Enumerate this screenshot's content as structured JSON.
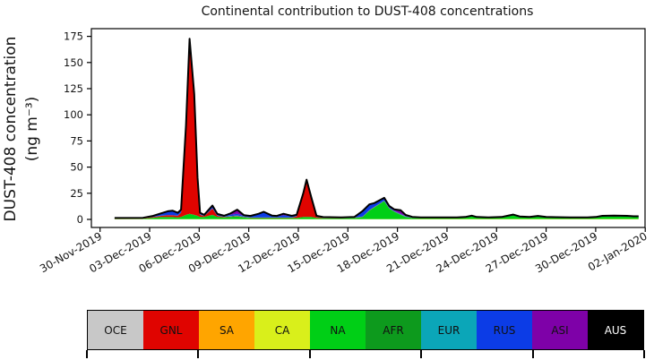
{
  "figure": {
    "title": "Continental contribution to DUST-408 concentrations",
    "ylabel_line1": "DUST-408 concentration",
    "ylabel_line2": "(ng m⁻³)"
  },
  "chart_data": {
    "type": "area",
    "stacked": true,
    "title": "Continental contribution to DUST-408 concentrations",
    "xlabel": "",
    "ylabel": "DUST-408 concentration (ng m⁻³)",
    "grid": false,
    "x_unit": "days since 30-Nov-2019",
    "xlim": [
      -0.55,
      33.0
    ],
    "ylim": [
      -7.7,
      182.4
    ],
    "y_ticks": [
      0,
      25,
      50,
      75,
      100,
      125,
      150,
      175
    ],
    "x_tick_days": [
      0,
      3,
      6,
      9,
      12,
      15,
      18,
      21,
      24,
      27,
      30,
      33
    ],
    "x_tick_labels": [
      "30-Nov-2019",
      "03-Dec-2019",
      "06-Dec-2019",
      "09-Dec-2019",
      "12-Dec-2019",
      "15-Dec-2019",
      "18-Dec-2019",
      "21-Dec-2019",
      "24-Dec-2019",
      "27-Dec-2019",
      "30-Dec-2019",
      "02-Jan-2020"
    ],
    "outline_color": "#000000",
    "x": [
      0.88,
      2.6,
      3.2,
      3.7,
      4.1,
      4.4,
      4.7,
      4.9,
      5.2,
      5.42,
      5.7,
      5.9,
      6.05,
      6.3,
      6.8,
      7.1,
      7.5,
      7.9,
      8.3,
      8.7,
      9.1,
      9.6,
      9.9,
      10.4,
      10.7,
      11.1,
      11.6,
      11.9,
      12.3,
      12.5,
      12.8,
      13.1,
      13.5,
      14.6,
      15.4,
      15.9,
      16.3,
      16.6,
      17.2,
      17.5,
      17.8,
      18.2,
      18.5,
      18.9,
      19.4,
      20.5,
      21.6,
      22.1,
      22.5,
      22.8,
      23.5,
      24.3,
      25.0,
      25.4,
      26.0,
      26.5,
      27.0,
      27.6,
      28.6,
      29.5,
      30.0,
      30.4,
      31.1,
      31.9,
      32.3,
      32.6
    ],
    "series": [
      {
        "name": "OCE",
        "color": "#c8c8c8",
        "values": [
          0.05,
          0.05,
          0.05,
          0.05,
          0.05,
          0.05,
          0.05,
          0.05,
          0.05,
          0.05,
          0.05,
          0.05,
          0.05,
          0.05,
          0.05,
          0.05,
          0.05,
          0.05,
          0.05,
          0.05,
          0.05,
          0.05,
          0.05,
          0.05,
          0.05,
          0.05,
          0.05,
          0.05,
          0.05,
          0.05,
          0.05,
          0.05,
          0.05,
          0.05,
          0.05,
          0.05,
          0.05,
          0.05,
          0.05,
          0.05,
          0.05,
          0.05,
          0.05,
          0.05,
          0.05,
          0.05,
          0.05,
          0.05,
          0.05,
          0.05,
          0.05,
          0.05,
          0.05,
          0.05,
          0.05,
          0.05,
          0.05,
          0.05,
          0.05,
          0.05,
          0.05,
          0.05,
          0.05,
          0.05,
          0.05,
          0.05
        ]
      },
      {
        "name": "SA",
        "color": "#ffa500",
        "values": [
          0.05,
          0.05,
          0.05,
          0.05,
          0.05,
          0.05,
          0.05,
          0.05,
          0.05,
          0.05,
          0.05,
          0.05,
          0.05,
          0.05,
          0.05,
          0.05,
          0.05,
          0.05,
          0.05,
          0.05,
          0.05,
          0.05,
          0.05,
          0.05,
          0.05,
          0.05,
          0.05,
          0.05,
          0.05,
          0.05,
          0.05,
          0.05,
          0.05,
          0.05,
          0.05,
          0.05,
          0.05,
          0.05,
          0.05,
          0.05,
          0.05,
          0.05,
          0.05,
          0.05,
          0.05,
          0.05,
          0.05,
          0.05,
          0.05,
          0.05,
          0.05,
          0.05,
          0.05,
          0.05,
          0.05,
          0.05,
          0.05,
          0.05,
          0.05,
          0.05,
          0.05,
          0.05,
          0.05,
          0.05,
          0.05,
          0.05
        ]
      },
      {
        "name": "CA",
        "color": "#d9ef1b",
        "values": [
          0.2,
          0.2,
          0.2,
          0.2,
          0.2,
          0.2,
          0.2,
          0.2,
          0.2,
          0.2,
          0.2,
          0.2,
          0.2,
          0.2,
          0.2,
          0.2,
          0.2,
          0.2,
          0.2,
          0.2,
          0.2,
          0.2,
          0.2,
          0.2,
          0.2,
          0.2,
          0.2,
          0.2,
          0.2,
          0.2,
          0.2,
          0.2,
          0.2,
          0.2,
          0.2,
          0.2,
          0.2,
          0.2,
          0.2,
          0.2,
          0.2,
          0.2,
          0.2,
          0.2,
          0.3,
          0.3,
          0.3,
          0.3,
          0.3,
          0.3,
          0.3,
          0.3,
          0.3,
          0.3,
          0.3,
          0.3,
          0.3,
          0.3,
          0.3,
          0.3,
          0.3,
          0.3,
          0.3,
          0.3,
          0.3,
          0.3
        ]
      },
      {
        "name": "NA",
        "color": "#00cf16",
        "values": [
          0.3,
          0.4,
          1.2,
          2,
          2,
          2,
          1.5,
          2,
          4,
          5,
          4,
          3,
          2,
          2,
          4,
          2,
          1.5,
          2,
          2.5,
          1.5,
          1,
          1,
          1,
          1,
          1,
          1,
          1,
          1,
          2,
          2,
          2,
          1,
          0.8,
          0.8,
          1,
          2,
          8,
          11,
          17,
          10,
          7,
          4,
          2,
          1,
          0.8,
          0.8,
          0.8,
          1.2,
          2.5,
          1.2,
          0.8,
          1.2,
          3.5,
          1.7,
          1.2,
          2.2,
          1.2,
          1,
          0.8,
          0.8,
          1.2,
          2.2,
          2.4,
          2.2,
          1.8,
          1.8
        ]
      },
      {
        "name": "AFR",
        "color": "#0d9a1d",
        "values": [
          0.1,
          0.1,
          0.1,
          0.1,
          0.1,
          0.1,
          0.1,
          0.1,
          0.1,
          0.1,
          0.1,
          0.1,
          0.1,
          0.1,
          0.1,
          0.1,
          0.1,
          0.1,
          0.1,
          0.1,
          0.1,
          0.1,
          0.1,
          0.1,
          0.1,
          0.1,
          0.1,
          0.1,
          0.1,
          0.1,
          0.1,
          0.1,
          0.1,
          0.1,
          0.1,
          0.1,
          0.3,
          0.3,
          0.3,
          0.3,
          0.3,
          0.3,
          0.1,
          0.1,
          0.1,
          0.1,
          0.1,
          0.1,
          0.1,
          0.1,
          0.1,
          0.1,
          0.1,
          0.1,
          0.1,
          0.1,
          0.1,
          0.1,
          0.1,
          0.1,
          0.1,
          0.1,
          0.1,
          0.1,
          0.1,
          0.1
        ]
      },
      {
        "name": "GNL",
        "color": "#e00400",
        "values": [
          0.3,
          0.3,
          0.6,
          1,
          1.5,
          1.5,
          1.5,
          4,
          82,
          165,
          113,
          34,
          2,
          0.8,
          6,
          1,
          0.4,
          0.4,
          0.4,
          0.3,
          0.3,
          0.3,
          0.3,
          0.3,
          0.3,
          0.3,
          0.3,
          1.5,
          21,
          34,
          16.5,
          1,
          0.3,
          0.2,
          0.2,
          0.2,
          0.2,
          0.2,
          0.2,
          0.2,
          0.1,
          0.1,
          0.1,
          0.1,
          0.1,
          0.1,
          0.1,
          0.1,
          0.1,
          0.1,
          0.1,
          0.1,
          0.1,
          0.1,
          0.1,
          0.1,
          0.1,
          0.1,
          0.1,
          0.1,
          0.1,
          0.1,
          0.1,
          0.1,
          0.1,
          0.1
        ]
      },
      {
        "name": "EUR",
        "color": "#0ba6b8",
        "values": [
          0.2,
          0.2,
          0.2,
          0.2,
          0.2,
          0.2,
          0.2,
          0.2,
          0.2,
          0.2,
          0.2,
          0.2,
          0.2,
          0.2,
          0.2,
          0.2,
          0.2,
          0.5,
          0.5,
          0.5,
          0.2,
          0.2,
          0.2,
          0.2,
          0.2,
          0.2,
          0.2,
          0.2,
          0.5,
          0.5,
          0.5,
          0.2,
          0.2,
          0.2,
          0.2,
          0.2,
          0.2,
          0.2,
          0.2,
          0.2,
          0.2,
          0.2,
          0.2,
          0.2,
          0.2,
          0.2,
          0.2,
          0.2,
          0.2,
          0.2,
          0.2,
          0.2,
          0.2,
          0.2,
          0.2,
          0.2,
          0.2,
          0.2,
          0.2,
          0.2,
          0.2,
          0.2,
          0.2,
          0.2,
          0.2,
          0.2
        ]
      },
      {
        "name": "RUS",
        "color": "#0c3ce6",
        "values": [
          0.1,
          0.2,
          0.8,
          2,
          3.5,
          4,
          2.5,
          2.5,
          3,
          2,
          2,
          2,
          1.2,
          0.6,
          1.5,
          1,
          0.5,
          1.2,
          1.5,
          0.6,
          1,
          3,
          5,
          1.5,
          1,
          2,
          1,
          1,
          1,
          1,
          0.8,
          0.5,
          0.3,
          0.3,
          0.5,
          5,
          5,
          3,
          2,
          1,
          0.6,
          0.4,
          0.4,
          0.3,
          0.2,
          0.2,
          0.2,
          0.2,
          0.2,
          0.2,
          0.2,
          0.2,
          0.2,
          0.2,
          0.2,
          0.2,
          0.2,
          0.2,
          0.2,
          0.2,
          0.2,
          0.3,
          0.3,
          0.3,
          0.3,
          0.3
        ]
      },
      {
        "name": "ASI",
        "color": "#7e01a8",
        "values": [
          0.05,
          0.05,
          0.1,
          0.2,
          0.2,
          0.2,
          0.2,
          0.2,
          0.2,
          0.2,
          0.3,
          0.5,
          0.5,
          0.4,
          1.2,
          0.6,
          0.5,
          1.2,
          4,
          0.8,
          0.4,
          0.5,
          0.4,
          0.3,
          0.4,
          1.5,
          0.5,
          0.3,
          0.1,
          0.1,
          0.3,
          0.3,
          0.2,
          0.1,
          0.1,
          0.3,
          0.4,
          0.6,
          0.6,
          0.8,
          1.2,
          3.4,
          1.2,
          0.4,
          0.2,
          0.1,
          0.1,
          0.1,
          0.1,
          0.1,
          0.1,
          0.1,
          0.1,
          0.1,
          0.1,
          0.1,
          0.1,
          0.1,
          0.1,
          0.1,
          0.1,
          0.1,
          0.1,
          0.1,
          0.1,
          0.1
        ]
      },
      {
        "name": "AUS",
        "color": "#000000",
        "values": [
          0,
          0,
          0,
          0,
          0,
          0,
          0,
          0,
          0,
          0,
          0,
          0,
          0,
          0,
          0,
          0,
          0,
          0,
          0,
          0,
          0,
          0,
          0,
          0,
          0,
          0,
          0,
          0,
          0,
          0,
          0,
          0,
          0,
          0,
          0,
          0,
          0,
          0,
          0,
          0,
          0,
          0,
          0,
          0,
          0,
          0,
          0,
          0,
          0,
          0,
          0,
          0,
          0,
          0,
          0,
          0,
          0,
          0,
          0,
          0,
          0,
          0,
          0,
          0,
          0,
          0
        ]
      }
    ],
    "legend": {
      "position": "bottom-colorbar",
      "entries": [
        {
          "label": "OCE",
          "color": "#c8c8c8",
          "text_color": "#111111"
        },
        {
          "label": "GNL",
          "color": "#e00400",
          "text_color": "#111111"
        },
        {
          "label": "SA",
          "color": "#ffa500",
          "text_color": "#111111"
        },
        {
          "label": "CA",
          "color": "#d9ef1b",
          "text_color": "#111111"
        },
        {
          "label": "NA",
          "color": "#00cf16",
          "text_color": "#111111"
        },
        {
          "label": "AFR",
          "color": "#0d9a1d",
          "text_color": "#111111"
        },
        {
          "label": "EUR",
          "color": "#0ba6b8",
          "text_color": "#111111"
        },
        {
          "label": "RUS",
          "color": "#0c3ce6",
          "text_color": "#111111"
        },
        {
          "label": "ASI",
          "color": "#7e01a8",
          "text_color": "#111111"
        },
        {
          "label": "AUS",
          "color": "#000000",
          "text_color": "#ffffff"
        }
      ],
      "tick_cell_boundaries": [
        0,
        2,
        4,
        6,
        8,
        10
      ]
    }
  }
}
